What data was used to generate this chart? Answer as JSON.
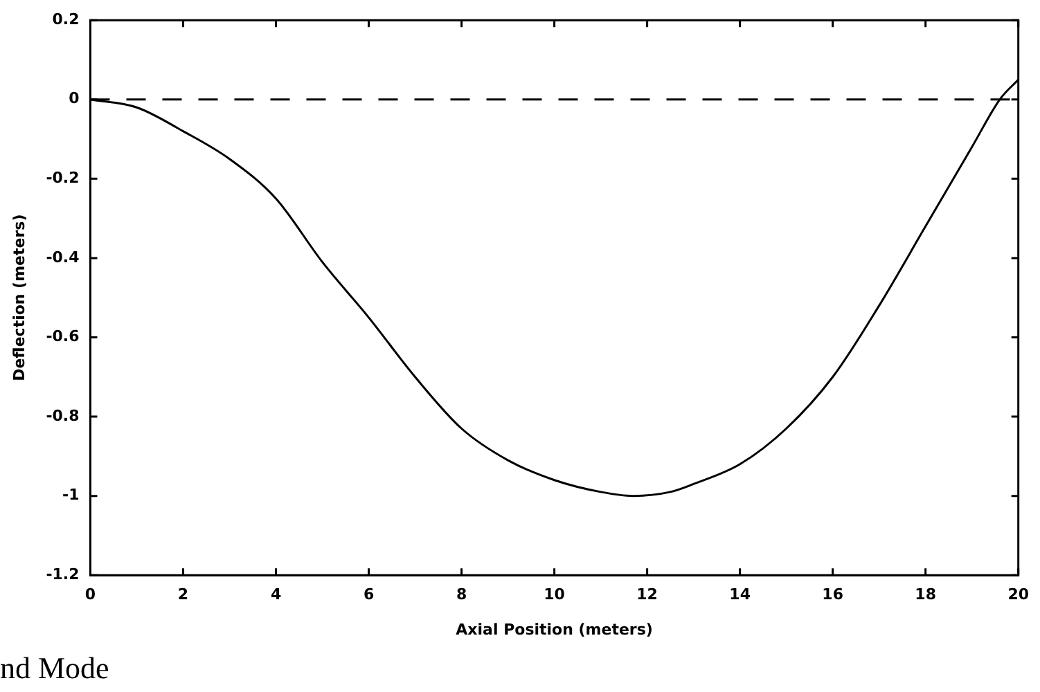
{
  "chart_data": {
    "type": "line",
    "xlabel": "Axial Position (meters)",
    "ylabel": "Deflection (meters)",
    "x": [
      0,
      1,
      2,
      3,
      4,
      5,
      6,
      7,
      8,
      9,
      10,
      11,
      11.7,
      12.5,
      13,
      14,
      15,
      16,
      17,
      18,
      19,
      19.6,
      20
    ],
    "series": [
      {
        "color": "#000000",
        "values": [
          0,
          -0.02,
          -0.08,
          -0.15,
          -0.25,
          -0.41,
          -0.55,
          -0.7,
          -0.83,
          -0.91,
          -0.96,
          -0.99,
          -1.0,
          -0.99,
          -0.97,
          -0.92,
          -0.83,
          -0.7,
          -0.52,
          -0.32,
          -0.12,
          0,
          0.05
        ]
      }
    ],
    "xlim": [
      0,
      20
    ],
    "xticks": [
      0,
      2,
      4,
      6,
      8,
      10,
      12,
      14,
      16,
      18,
      20
    ],
    "ylim": [
      -1.2,
      0.2
    ],
    "yticks": [
      -1.2,
      -1,
      -0.8,
      -0.6,
      -0.4,
      -0.2,
      0,
      0.2
    ],
    "ref_lines": [
      {
        "axis": "y",
        "value": 0,
        "color": "#000000",
        "line_style": "dashed"
      }
    ],
    "annotations": [
      "nd Mode"
    ],
    "grid": false,
    "legend": false,
    "marker": "none",
    "line_style": "solid"
  }
}
